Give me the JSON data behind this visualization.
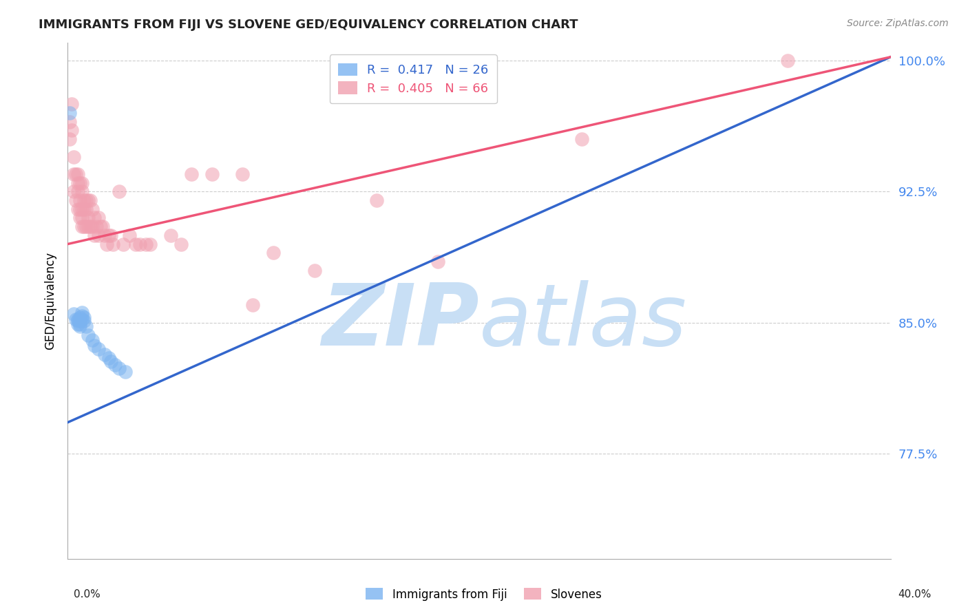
{
  "title": "IMMIGRANTS FROM FIJI VS SLOVENE GED/EQUIVALENCY CORRELATION CHART",
  "source": "Source: ZipAtlas.com",
  "ylabel": "GED/Equivalency",
  "xmin": 0.0,
  "xmax": 0.4,
  "ymin": 0.715,
  "ymax": 1.01,
  "fiji_R": 0.417,
  "fiji_N": 26,
  "slovene_R": 0.405,
  "slovene_N": 66,
  "fiji_color": "#7bb3f0",
  "slovene_color": "#f0a0b0",
  "fiji_line_color": "#3366cc",
  "slovene_line_color": "#ee5577",
  "fiji_line_x0": 0.0,
  "fiji_line_y0": 0.793,
  "fiji_line_x1": 0.4,
  "fiji_line_y1": 1.002,
  "slovene_line_x0": 0.0,
  "slovene_line_y0": 0.895,
  "slovene_line_x1": 0.4,
  "slovene_line_y1": 1.002,
  "fiji_points_x": [
    0.001,
    0.003,
    0.004,
    0.005,
    0.005,
    0.005,
    0.006,
    0.006,
    0.006,
    0.006,
    0.007,
    0.007,
    0.007,
    0.008,
    0.008,
    0.009,
    0.01,
    0.012,
    0.013,
    0.015,
    0.018,
    0.02,
    0.021,
    0.023,
    0.025,
    0.028
  ],
  "fiji_points_y": [
    0.97,
    0.855,
    0.852,
    0.852,
    0.851,
    0.849,
    0.853,
    0.851,
    0.849,
    0.848,
    0.856,
    0.854,
    0.852,
    0.853,
    0.851,
    0.848,
    0.843,
    0.84,
    0.837,
    0.835,
    0.832,
    0.83,
    0.828,
    0.826,
    0.824,
    0.822
  ],
  "slovene_points_x": [
    0.001,
    0.001,
    0.002,
    0.002,
    0.003,
    0.003,
    0.003,
    0.004,
    0.004,
    0.005,
    0.005,
    0.005,
    0.005,
    0.006,
    0.006,
    0.006,
    0.006,
    0.007,
    0.007,
    0.007,
    0.007,
    0.007,
    0.008,
    0.008,
    0.008,
    0.009,
    0.009,
    0.009,
    0.01,
    0.01,
    0.01,
    0.011,
    0.011,
    0.012,
    0.012,
    0.013,
    0.013,
    0.014,
    0.015,
    0.015,
    0.016,
    0.017,
    0.018,
    0.019,
    0.02,
    0.021,
    0.022,
    0.025,
    0.027,
    0.03,
    0.033,
    0.035,
    0.038,
    0.04,
    0.05,
    0.055,
    0.06,
    0.07,
    0.085,
    0.09,
    0.1,
    0.12,
    0.15,
    0.18,
    0.25,
    0.35
  ],
  "slovene_points_y": [
    0.965,
    0.955,
    0.975,
    0.96,
    0.945,
    0.935,
    0.925,
    0.935,
    0.92,
    0.935,
    0.925,
    0.915,
    0.93,
    0.93,
    0.92,
    0.915,
    0.91,
    0.93,
    0.925,
    0.915,
    0.91,
    0.905,
    0.92,
    0.915,
    0.905,
    0.92,
    0.915,
    0.905,
    0.92,
    0.91,
    0.905,
    0.92,
    0.905,
    0.915,
    0.905,
    0.91,
    0.9,
    0.905,
    0.91,
    0.9,
    0.905,
    0.905,
    0.9,
    0.895,
    0.9,
    0.9,
    0.895,
    0.925,
    0.895,
    0.9,
    0.895,
    0.895,
    0.895,
    0.895,
    0.9,
    0.895,
    0.935,
    0.935,
    0.935,
    0.86,
    0.89,
    0.88,
    0.92,
    0.885,
    0.955,
    1.0
  ],
  "ytick_vals": [
    0.775,
    0.85,
    0.925,
    1.0
  ],
  "ytick_labels": [
    "77.5%",
    "85.0%",
    "92.5%",
    "100.0%"
  ],
  "grid_color": "#cccccc",
  "background_color": "#ffffff",
  "watermark_zip": "ZIP",
  "watermark_atlas": "atlas",
  "watermark_color_zip": "#c8dff5",
  "watermark_color_atlas": "#c8dff5"
}
